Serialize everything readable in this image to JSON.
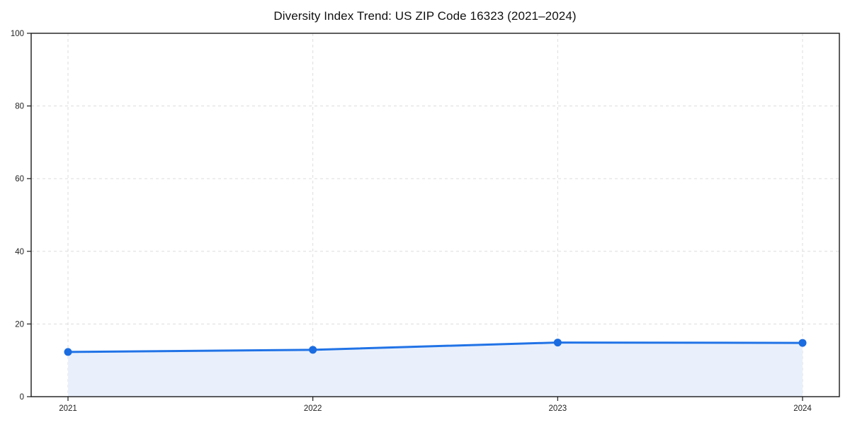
{
  "chart_data": {
    "type": "area",
    "title": "Diversity Index Trend: US ZIP Code 16323 (2021–2024)",
    "x_categories": [
      "2021",
      "2022",
      "2023",
      "2024"
    ],
    "values": [
      12.3,
      12.9,
      14.9,
      14.8
    ],
    "xlabel": "",
    "ylabel": "",
    "ylim": [
      0,
      100
    ],
    "yticks": [
      0,
      20,
      40,
      60,
      80,
      100
    ],
    "grid": "dashed both axes",
    "legend_position": "none",
    "colors": {
      "line": "#2173e6",
      "marker": "#1b6ce0",
      "fill": "#e9f0fc",
      "grid": "#dddddd",
      "axis": "#1a1a1a",
      "background": "#ffffff",
      "tick_text": "#222222",
      "title_text": "#111111"
    }
  }
}
